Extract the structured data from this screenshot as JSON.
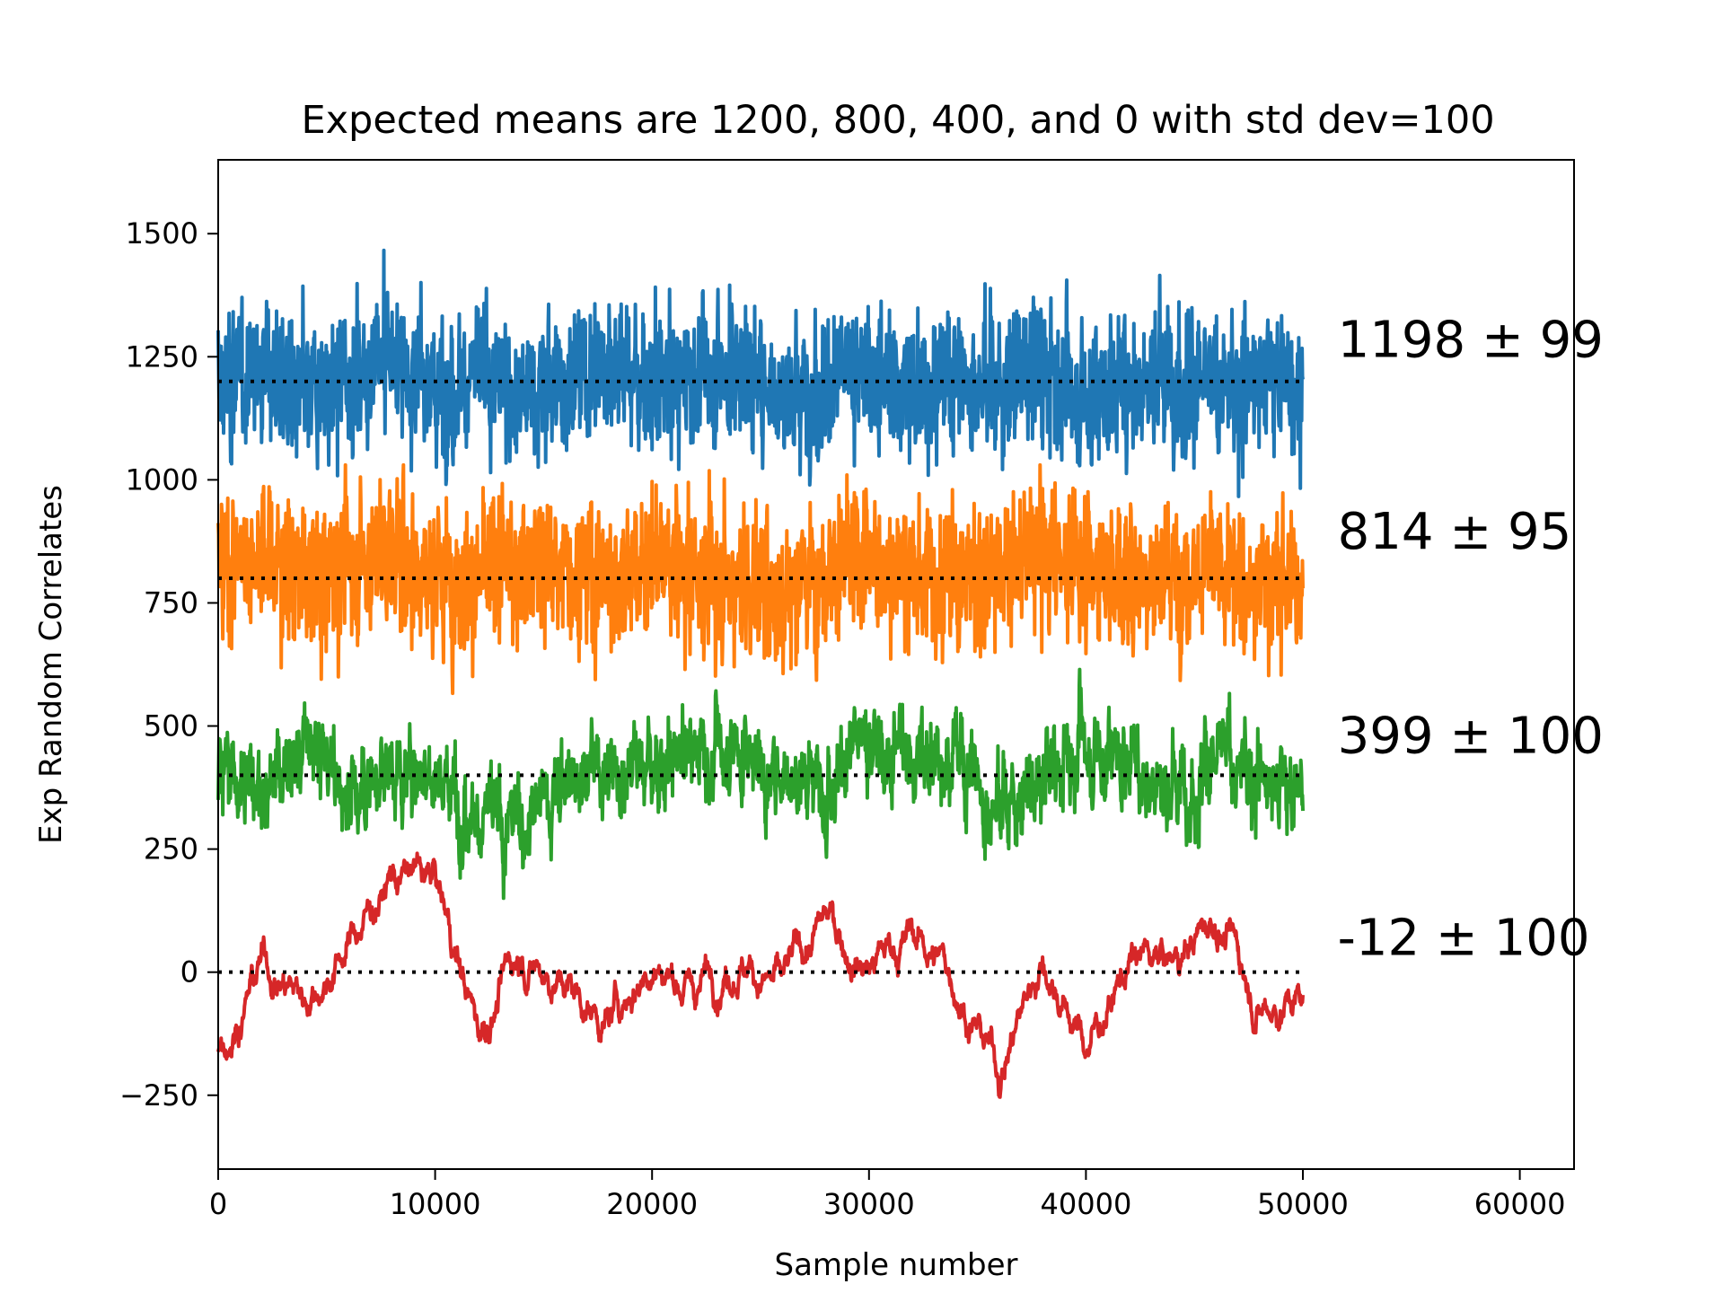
{
  "chart_data": {
    "type": "line",
    "title": "Expected means are 1200, 800, 400, and 0 with std dev=100",
    "xlabel": "Sample number",
    "ylabel": "Exp Random Correlates",
    "xlim": [
      0,
      62500
    ],
    "ylim": [
      -400,
      1650
    ],
    "xticks": [
      0,
      10000,
      20000,
      30000,
      40000,
      50000,
      60000
    ],
    "yticks": [
      -250,
      0,
      250,
      500,
      750,
      1000,
      1250,
      1500
    ],
    "grid": false,
    "legend": "none",
    "series": [
      {
        "color": "#1f77b4",
        "target_mean": 1200,
        "approx_range": [
          925,
          1570
        ],
        "x": [
          0,
          2000,
          4000,
          6000,
          8000,
          10000,
          12000,
          14000,
          16000,
          18000,
          20000,
          22000,
          24000,
          26000,
          28000,
          30000,
          32000,
          34000,
          36000,
          38000,
          40000,
          42000,
          44000,
          46000,
          48000,
          50000
        ],
        "y": [
          1190,
          1230,
          1160,
          1210,
          1250,
          1180,
          1220,
          1170,
          1200,
          1240,
          1190,
          1210,
          1230,
          1170,
          1200,
          1220,
          1180,
          1210,
          1190,
          1230,
          1160,
          1200,
          1220,
          1180,
          1210,
          1200
        ]
      },
      {
        "color": "#ff7f0e",
        "target_mean": 800,
        "approx_range": [
          540,
          1030
        ],
        "x": [
          0,
          2000,
          4000,
          6000,
          8000,
          10000,
          12000,
          14000,
          16000,
          18000,
          20000,
          22000,
          24000,
          26000,
          28000,
          30000,
          32000,
          34000,
          36000,
          38000,
          40000,
          42000,
          44000,
          46000,
          48000,
          50000
        ],
        "y": [
          820,
          850,
          800,
          830,
          860,
          810,
          790,
          840,
          820,
          800,
          830,
          810,
          790,
          780,
          820,
          830,
          800,
          810,
          820,
          850,
          830,
          800,
          820,
          810,
          790,
          800
        ]
      },
      {
        "color": "#2ca02c",
        "target_mean": 400,
        "approx_range": [
          90,
          740
        ],
        "x": [
          0,
          2000,
          4000,
          6000,
          8000,
          10000,
          12000,
          14000,
          16000,
          18000,
          20000,
          22000,
          24000,
          26000,
          28000,
          30000,
          32000,
          34000,
          36000,
          38000,
          40000,
          42000,
          44000,
          46000,
          48000,
          50000
        ],
        "y": [
          420,
          380,
          450,
          360,
          420,
          400,
          330,
          300,
          390,
          430,
          420,
          450,
          460,
          390,
          420,
          470,
          440,
          430,
          350,
          390,
          470,
          420,
          380,
          430,
          410,
          350
        ]
      },
      {
        "color": "#d62728",
        "target_mean": 0,
        "approx_range": [
          -310,
          300
        ],
        "x": [
          0,
          2000,
          4000,
          6000,
          8000,
          10000,
          12000,
          14000,
          16000,
          18000,
          20000,
          22000,
          24000,
          26000,
          28000,
          30000,
          32000,
          34000,
          36000,
          38000,
          40000,
          42000,
          44000,
          46000,
          48000,
          50000
        ],
        "y": [
          -150,
          20,
          -50,
          60,
          200,
          180,
          -120,
          50,
          -20,
          -100,
          40,
          -30,
          60,
          -40,
          100,
          20,
          80,
          -10,
          -200,
          40,
          -150,
          20,
          10,
          120,
          -60,
          -50
        ]
      }
    ],
    "reference_lines": [
      {
        "y": 1200,
        "x_range": [
          0,
          50000
        ],
        "color": "#000000",
        "style": "dotted"
      },
      {
        "y": 800,
        "x_range": [
          0,
          50000
        ],
        "color": "#000000",
        "style": "dotted"
      },
      {
        "y": 400,
        "x_range": [
          0,
          50000
        ],
        "color": "#000000",
        "style": "dotted"
      },
      {
        "y": 0,
        "x_range": [
          0,
          50000
        ],
        "color": "#000000",
        "style": "dotted"
      }
    ],
    "annotations": [
      {
        "text": "1198 ± 99",
        "x": 51600,
        "y": 1250
      },
      {
        "text": "814 ± 95",
        "x": 51600,
        "y": 860
      },
      {
        "text": "399 ± 100",
        "x": 51600,
        "y": 445
      },
      {
        "text": "-12 ± 100",
        "x": 51600,
        "y": 35
      }
    ]
  }
}
